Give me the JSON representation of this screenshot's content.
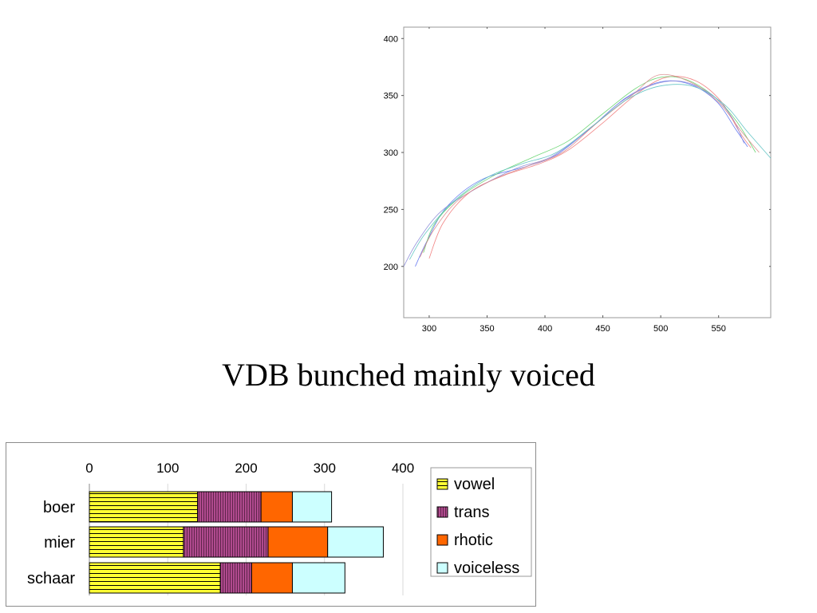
{
  "page": {
    "title": "VDB bunched mainly voiced"
  },
  "chart_data": [
    {
      "type": "line",
      "xlim": [
        278,
        595
      ],
      "ylim": [
        155,
        410
      ],
      "xticks": [
        300,
        350,
        400,
        450,
        500,
        550
      ],
      "yticks": [
        200,
        250,
        300,
        350,
        400
      ],
      "grid": false,
      "series": [
        {
          "color": "#5a6ff0",
          "points": [
            [
              288,
              200
            ],
            [
              298,
              222
            ],
            [
              315,
              252
            ],
            [
              345,
              276
            ],
            [
              385,
              288
            ],
            [
              410,
              298
            ],
            [
              440,
              322
            ],
            [
              470,
              348
            ],
            [
              500,
              362
            ],
            [
              525,
              360
            ],
            [
              548,
              345
            ],
            [
              565,
              320
            ],
            [
              575,
              305
            ]
          ]
        },
        {
          "color": "#f07878",
          "points": [
            [
              300,
              207
            ],
            [
              312,
              238
            ],
            [
              335,
              265
            ],
            [
              365,
              280
            ],
            [
              395,
              290
            ],
            [
              420,
              302
            ],
            [
              450,
              326
            ],
            [
              480,
              352
            ],
            [
              505,
              366
            ],
            [
              530,
              363
            ],
            [
              552,
              345
            ],
            [
              568,
              318
            ],
            [
              578,
              304
            ]
          ]
        },
        {
          "color": "#62d36a",
          "points": [
            [
              295,
              212
            ],
            [
              305,
              238
            ],
            [
              328,
              262
            ],
            [
              360,
              282
            ],
            [
              390,
              296
            ],
            [
              420,
              310
            ],
            [
              450,
              334
            ],
            [
              478,
              356
            ],
            [
              500,
              366
            ],
            [
              522,
              364
            ],
            [
              545,
              350
            ],
            [
              565,
              328
            ],
            [
              582,
              300
            ]
          ]
        },
        {
          "color": "#8a8ad8",
          "points": [
            [
              278,
              200
            ],
            [
              290,
              222
            ],
            [
              310,
              248
            ],
            [
              340,
              268
            ],
            [
              375,
              286
            ],
            [
              405,
              296
            ],
            [
              438,
              320
            ],
            [
              465,
              344
            ],
            [
              495,
              360
            ],
            [
              520,
              362
            ],
            [
              545,
              350
            ],
            [
              562,
              330
            ],
            [
              572,
              308
            ]
          ]
        },
        {
          "color": "#d88888",
          "points": [
            [
              292,
              208
            ],
            [
              304,
              232
            ],
            [
              325,
              258
            ],
            [
              355,
              276
            ],
            [
              385,
              288
            ],
            [
              415,
              300
            ],
            [
              445,
              326
            ],
            [
              475,
              350
            ],
            [
              498,
              368
            ],
            [
              525,
              362
            ],
            [
              550,
              344
            ],
            [
              570,
              318
            ],
            [
              585,
              300
            ]
          ]
        },
        {
          "color": "#58c0c0",
          "points": [
            [
              283,
              206
            ],
            [
              296,
              228
            ],
            [
              320,
              256
            ],
            [
              350,
              278
            ],
            [
              380,
              290
            ],
            [
              410,
              300
            ],
            [
              442,
              324
            ],
            [
              470,
              346
            ],
            [
              498,
              358
            ],
            [
              528,
              358
            ],
            [
              555,
              342
            ],
            [
              575,
              318
            ],
            [
              595,
              295
            ]
          ]
        }
      ]
    },
    {
      "type": "bar",
      "orientation": "horizontal",
      "stacked": true,
      "categories": [
        "boer",
        "mier",
        "schaar"
      ],
      "xticks": [
        0,
        100,
        200,
        300,
        400
      ],
      "xlim": [
        0,
        400
      ],
      "legend_position": "right",
      "series": [
        {
          "name": "vowel",
          "color": "#ffff33",
          "pattern": "horizontal-lines",
          "values": [
            138,
            120,
            167
          ]
        },
        {
          "name": "trans",
          "color": "#b04a8e",
          "pattern": "vertical-lines",
          "values": [
            81,
            108,
            40
          ]
        },
        {
          "name": "rhotic",
          "color": "#ff6600",
          "pattern": "none",
          "values": [
            40,
            76,
            52
          ]
        },
        {
          "name": "voiceless",
          "color": "#ccffff",
          "pattern": "none",
          "values": [
            50,
            71,
            67
          ]
        }
      ]
    }
  ]
}
